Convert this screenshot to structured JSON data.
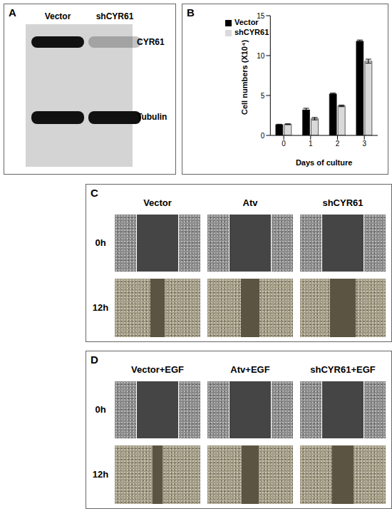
{
  "panel_a": {
    "letter": "A",
    "lanes": [
      "Vector",
      "shCYR61"
    ],
    "bands": [
      {
        "label": "CYR61",
        "intensity": [
          1,
          0.25
        ]
      },
      {
        "label": "Tubulin",
        "intensity": [
          1,
          1
        ]
      }
    ]
  },
  "chart_data": {
    "letter": "B",
    "type": "bar",
    "x_label": "Days of culture",
    "y_label": "Cell numbers (X10⁴)",
    "categories": [
      "0",
      "1",
      "2",
      "3"
    ],
    "series": [
      {
        "name": "Vector",
        "color": "#000000",
        "values": [
          1.35,
          3.2,
          5.2,
          11.8
        ],
        "error": [
          0.05,
          0.2,
          0.1,
          0.15
        ]
      },
      {
        "name": "shCYR61",
        "color": "#d9d9d9",
        "values": [
          1.4,
          2.1,
          3.7,
          9.3
        ],
        "error": [
          0.05,
          0.15,
          0.1,
          0.25
        ]
      }
    ],
    "ylim": [
      0,
      15
    ],
    "yticks": [
      0,
      5,
      10,
      15
    ],
    "legend": "upper left"
  },
  "panel_c": {
    "letter": "C",
    "columns": [
      "Vector",
      "Atv",
      "shCYR61"
    ],
    "rows": [
      "0h",
      "12h"
    ],
    "wound_width": [
      [
        0.5,
        0.5,
        0.5
      ],
      [
        0.17,
        0.22,
        0.3
      ]
    ]
  },
  "panel_d": {
    "letter": "D",
    "columns": [
      "Vector+EGF",
      "Atv+EGF",
      "shCYR61+EGF"
    ],
    "rows": [
      "0h",
      "12h"
    ],
    "wound_width": [
      [
        0.5,
        0.5,
        0.5
      ],
      [
        0.12,
        0.2,
        0.25
      ]
    ]
  }
}
